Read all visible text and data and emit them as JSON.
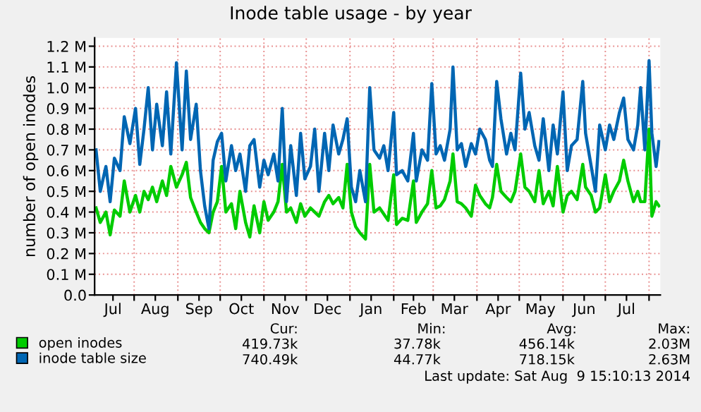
{
  "chart_data": {
    "type": "line",
    "title": "Inode table usage - by year",
    "ylabel": "number of open inodes",
    "x": [
      "2013-07-05",
      "2013-07-08",
      "2013-07-12",
      "2013-07-15",
      "2013-07-18",
      "2013-07-22",
      "2013-07-25",
      "2013-07-29",
      "2013-08-02",
      "2013-08-05",
      "2013-08-08",
      "2013-08-11",
      "2013-08-14",
      "2013-08-17",
      "2013-08-21",
      "2013-08-24",
      "2013-08-27",
      "2013-08-31",
      "2013-09-04",
      "2013-09-07",
      "2013-09-10",
      "2013-09-14",
      "2013-09-17",
      "2013-09-20",
      "2013-09-23",
      "2013-09-26",
      "2013-09-29",
      "2013-10-02",
      "2013-10-05",
      "2013-10-09",
      "2013-10-12",
      "2013-10-15",
      "2013-10-19",
      "2013-10-22",
      "2013-10-25",
      "2013-10-29",
      "2013-11-01",
      "2013-11-04",
      "2013-11-08",
      "2013-11-11",
      "2013-11-14",
      "2013-11-17",
      "2013-11-20",
      "2013-11-24",
      "2013-11-27",
      "2013-11-30",
      "2013-12-04",
      "2013-12-07",
      "2013-12-10",
      "2013-12-14",
      "2013-12-17",
      "2013-12-20",
      "2013-12-24",
      "2013-12-27",
      "2013-12-30",
      "2014-01-02",
      "2014-01-05",
      "2014-01-08",
      "2014-01-12",
      "2014-01-15",
      "2014-01-18",
      "2014-01-22",
      "2014-01-25",
      "2014-01-28",
      "2014-02-01",
      "2014-02-03",
      "2014-02-07",
      "2014-02-11",
      "2014-02-15",
      "2014-02-17",
      "2014-02-21",
      "2014-02-25",
      "2014-02-28",
      "2014-03-03",
      "2014-03-06",
      "2014-03-09",
      "2014-03-13",
      "2014-03-15",
      "2014-03-18",
      "2014-03-21",
      "2014-03-24",
      "2014-03-28",
      "2014-03-31",
      "2014-04-03",
      "2014-04-07",
      "2014-04-10",
      "2014-04-12",
      "2014-04-15",
      "2014-04-18",
      "2014-04-22",
      "2014-04-25",
      "2014-04-28",
      "2014-05-02",
      "2014-05-05",
      "2014-05-08",
      "2014-05-12",
      "2014-05-15",
      "2014-05-18",
      "2014-05-22",
      "2014-05-25",
      "2014-05-28",
      "2014-06-01",
      "2014-06-04",
      "2014-06-07",
      "2014-06-11",
      "2014-06-15",
      "2014-06-17",
      "2014-06-21",
      "2014-06-24",
      "2014-06-27",
      "2014-07-01",
      "2014-07-04",
      "2014-07-07",
      "2014-07-11",
      "2014-07-14",
      "2014-07-17",
      "2014-07-21",
      "2014-07-24",
      "2014-07-26",
      "2014-07-29",
      "2014-08-01",
      "2014-08-03",
      "2014-08-06",
      "2014-08-08"
    ],
    "series": [
      {
        "name": "open inodes",
        "color": "#00cc00",
        "values": [
          0.42,
          0.35,
          0.4,
          0.29,
          0.41,
          0.38,
          0.55,
          0.4,
          0.48,
          0.4,
          0.5,
          0.46,
          0.52,
          0.45,
          0.55,
          0.48,
          0.62,
          0.52,
          0.58,
          0.64,
          0.47,
          0.4,
          0.35,
          0.32,
          0.3,
          0.4,
          0.45,
          0.62,
          0.4,
          0.44,
          0.32,
          0.5,
          0.35,
          0.28,
          0.43,
          0.3,
          0.45,
          0.36,
          0.4,
          0.45,
          0.63,
          0.4,
          0.42,
          0.35,
          0.44,
          0.38,
          0.42,
          0.4,
          0.38,
          0.45,
          0.48,
          0.44,
          0.47,
          0.42,
          0.63,
          0.4,
          0.33,
          0.3,
          0.27,
          0.63,
          0.4,
          0.42,
          0.39,
          0.36,
          0.58,
          0.34,
          0.37,
          0.36,
          0.55,
          0.35,
          0.4,
          0.44,
          0.6,
          0.42,
          0.43,
          0.46,
          0.55,
          0.68,
          0.45,
          0.44,
          0.42,
          0.38,
          0.53,
          0.48,
          0.44,
          0.42,
          0.47,
          0.63,
          0.5,
          0.47,
          0.45,
          0.5,
          0.68,
          0.52,
          0.5,
          0.45,
          0.6,
          0.44,
          0.5,
          0.43,
          0.62,
          0.4,
          0.48,
          0.5,
          0.46,
          0.63,
          0.52,
          0.48,
          0.4,
          0.42,
          0.58,
          0.45,
          0.5,
          0.55,
          0.65,
          0.55,
          0.45,
          0.5,
          0.45,
          0.45,
          0.8,
          0.38,
          0.45,
          0.43
        ]
      },
      {
        "name": "inode table size",
        "color": "#0066b3",
        "values": [
          0.7,
          0.5,
          0.62,
          0.45,
          0.66,
          0.6,
          0.86,
          0.73,
          0.9,
          0.63,
          0.8,
          1.0,
          0.7,
          0.92,
          0.72,
          0.98,
          0.68,
          1.12,
          0.7,
          1.08,
          0.75,
          0.92,
          0.6,
          0.43,
          0.32,
          0.65,
          0.74,
          0.78,
          0.55,
          0.72,
          0.6,
          0.68,
          0.5,
          0.72,
          0.75,
          0.52,
          0.65,
          0.58,
          0.68,
          0.55,
          0.9,
          0.45,
          0.72,
          0.48,
          0.78,
          0.56,
          0.62,
          0.8,
          0.5,
          0.78,
          0.6,
          0.82,
          0.68,
          0.75,
          0.85,
          0.52,
          0.45,
          0.6,
          0.45,
          1.0,
          0.7,
          0.66,
          0.72,
          0.6,
          0.88,
          0.58,
          0.6,
          0.55,
          0.78,
          0.55,
          0.7,
          0.65,
          1.02,
          0.68,
          0.72,
          0.65,
          0.8,
          1.1,
          0.7,
          0.73,
          0.62,
          0.73,
          0.68,
          0.8,
          0.75,
          0.65,
          0.62,
          1.03,
          0.85,
          0.68,
          0.78,
          0.7,
          1.07,
          0.8,
          0.88,
          0.72,
          0.65,
          0.85,
          0.6,
          0.82,
          0.68,
          0.98,
          0.6,
          0.72,
          0.75,
          1.03,
          0.78,
          0.62,
          0.5,
          0.82,
          0.7,
          0.82,
          0.75,
          0.88,
          0.95,
          0.75,
          0.7,
          0.82,
          1.0,
          0.7,
          1.13,
          0.78,
          0.62,
          0.74
        ]
      }
    ],
    "xlim": [
      "2013-07-04",
      "2014-08-09"
    ],
    "xticks": [
      {
        "value": "2013-07-17",
        "label": "Jul"
      },
      {
        "value": "2013-08-01",
        "label": null
      },
      {
        "value": "2013-08-16",
        "label": "Aug"
      },
      {
        "value": "2013-09-01",
        "label": null
      },
      {
        "value": "2013-09-16",
        "label": "Sep"
      },
      {
        "value": "2013-10-01",
        "label": null
      },
      {
        "value": "2013-10-16",
        "label": "Oct"
      },
      {
        "value": "2013-11-01",
        "label": null
      },
      {
        "value": "2013-11-16",
        "label": "Nov"
      },
      {
        "value": "2013-12-01",
        "label": null
      },
      {
        "value": "2013-12-16",
        "label": "Dec"
      },
      {
        "value": "2014-01-01",
        "label": null
      },
      {
        "value": "2014-01-16",
        "label": "Jan"
      },
      {
        "value": "2014-02-01",
        "label": null
      },
      {
        "value": "2014-02-15",
        "label": "Feb"
      },
      {
        "value": "2014-03-01",
        "label": null
      },
      {
        "value": "2014-03-16",
        "label": "Mar"
      },
      {
        "value": "2014-04-01",
        "label": null
      },
      {
        "value": "2014-04-16",
        "label": "Apr"
      },
      {
        "value": "2014-05-01",
        "label": null
      },
      {
        "value": "2014-05-16",
        "label": "May"
      },
      {
        "value": "2014-06-01",
        "label": null
      },
      {
        "value": "2014-06-16",
        "label": "Jun"
      },
      {
        "value": "2014-07-01",
        "label": null
      },
      {
        "value": "2014-07-16",
        "label": "Jul"
      },
      {
        "value": "2014-08-01",
        "label": null
      }
    ],
    "ylim": [
      0,
      1.24
    ],
    "yticks": [
      {
        "value": 0,
        "label": "0.0"
      },
      {
        "value": 0.1,
        "label": "0.1 M"
      },
      {
        "value": 0.2,
        "label": "0.2 M"
      },
      {
        "value": 0.3,
        "label": "0.3 M"
      },
      {
        "value": 0.4,
        "label": "0.4 M"
      },
      {
        "value": 0.5,
        "label": "0.5 M"
      },
      {
        "value": 0.6,
        "label": "0.6 M"
      },
      {
        "value": 0.7,
        "label": "0.7 M"
      },
      {
        "value": 0.8,
        "label": "0.8 M"
      },
      {
        "value": 0.9,
        "label": "0.9 M"
      },
      {
        "value": 1.0,
        "label": "1.0 M"
      },
      {
        "value": 1.1,
        "label": "1.1 M"
      },
      {
        "value": 1.2,
        "label": "1.2 M"
      }
    ],
    "grid": true,
    "legend": "bottom left",
    "marker": "none",
    "line_style": "solid",
    "annotations": [
      "Cur:",
      "Min:",
      "Avg:",
      "Max:",
      "419.73k",
      "37.78k",
      "456.14k",
      "2.03M",
      "740.49k",
      "44.77k",
      "718.15k",
      "2.63M",
      "Last update: Sat Aug  9 15:10:13 2014"
    ]
  }
}
